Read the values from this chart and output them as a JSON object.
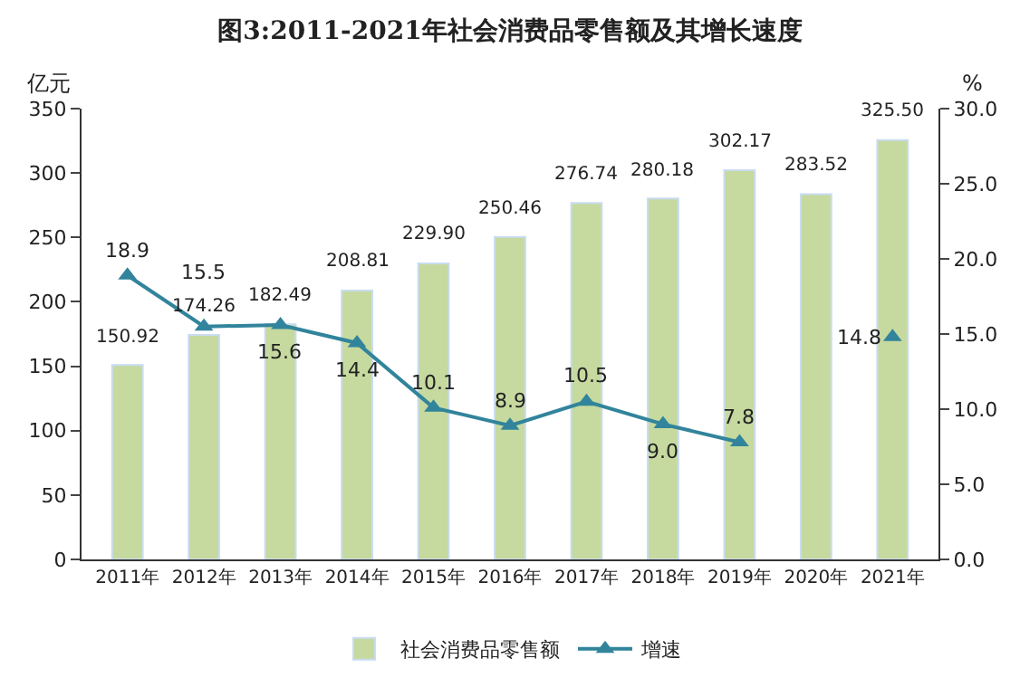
{
  "chart_data": {
    "type": "bar",
    "title": "图3:2011-2021年社会消费品零售额及其增长速度",
    "ylabel": "亿元",
    "y2label": "%",
    "categories": [
      "2011年",
      "2012年",
      "2013年",
      "2014年",
      "2015年",
      "2016年",
      "2017年",
      "2018年",
      "2019年",
      "2020年",
      "2021年"
    ],
    "series": [
      {
        "name": "社会消费品零售额",
        "color": "#c6d99f",
        "values": [
          150.92,
          174.26,
          182.49,
          208.81,
          229.9,
          250.46,
          276.74,
          280.18,
          302.17,
          283.52,
          325.5
        ],
        "value_labels": [
          "150.92",
          "174.26",
          "182.49",
          "208.81",
          "229.90",
          "250.46",
          "276.74",
          "280.18",
          "302.17",
          "283.52",
          "325.50"
        ]
      },
      {
        "name": "增速",
        "type": "line",
        "axis": "y2",
        "color": "#31849b",
        "marker": "triangle",
        "values": [
          18.9,
          15.5,
          15.6,
          14.4,
          10.1,
          8.9,
          10.5,
          9.0,
          7.8,
          null,
          14.8
        ],
        "value_labels": [
          "18.9",
          "15.5",
          "15.6",
          "14.4",
          "10.1",
          "8.9",
          "10.5",
          "9.0",
          "7.8",
          null,
          "14.8"
        ]
      }
    ],
    "ylim": [
      0,
      350
    ],
    "yticks": [
      0,
      50,
      100,
      150,
      200,
      250,
      300,
      350
    ],
    "y2lim": [
      0,
      30
    ],
    "y2ticks": [
      {
        "value": 0,
        "label": "0.0"
      },
      {
        "value": 5,
        "label": "5.0"
      },
      {
        "value": 10,
        "label": "10.0"
      },
      {
        "value": 15,
        "label": "15.0"
      },
      {
        "value": 20,
        "label": "20.0"
      },
      {
        "value": 25,
        "label": "25.0"
      },
      {
        "value": 30,
        "label": "30.0"
      }
    ],
    "legend": "bottom"
  }
}
